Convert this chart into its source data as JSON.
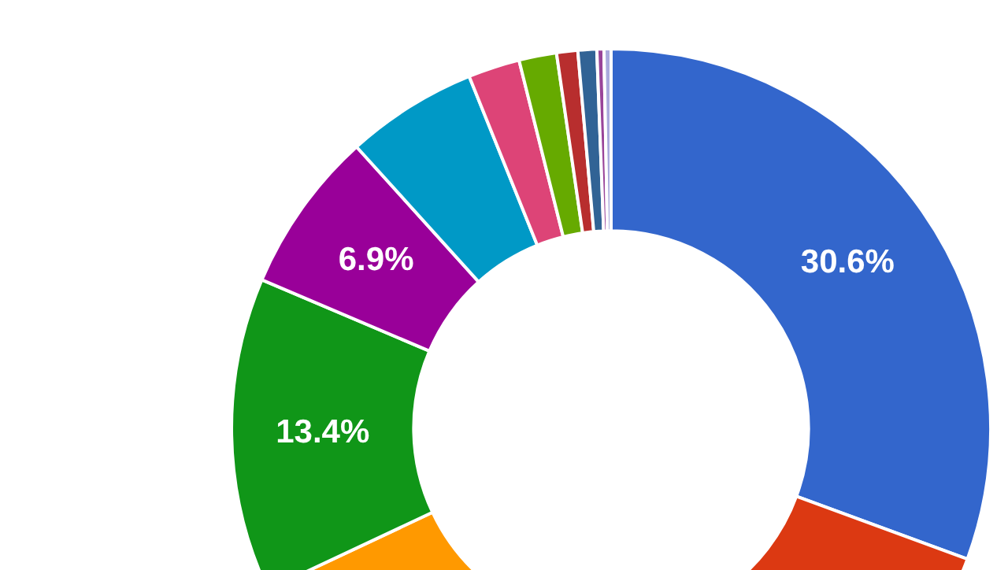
{
  "chart_data": {
    "type": "donut",
    "categories": [
      null,
      null,
      null,
      null,
      null,
      null,
      null,
      null,
      null,
      null,
      null,
      null
    ],
    "values": [
      30.6,
      19.4,
      18.0,
      13.4,
      6.9,
      5.6,
      2.2,
      1.6,
      0.9,
      0.8,
      0.3,
      0.3
    ],
    "colors": [
      "#3366cc",
      "#dc3912",
      "#ff9900",
      "#109618",
      "#990099",
      "#0099c6",
      "#dd4477",
      "#66aa00",
      "#b82e2e",
      "#316395",
      "#994499",
      "#aaaadd"
    ],
    "value_labels": [
      "30.6%",
      null,
      null,
      "13.4%",
      "6.9%",
      null,
      null,
      null,
      null,
      null,
      null,
      null
    ],
    "legend": false
  }
}
